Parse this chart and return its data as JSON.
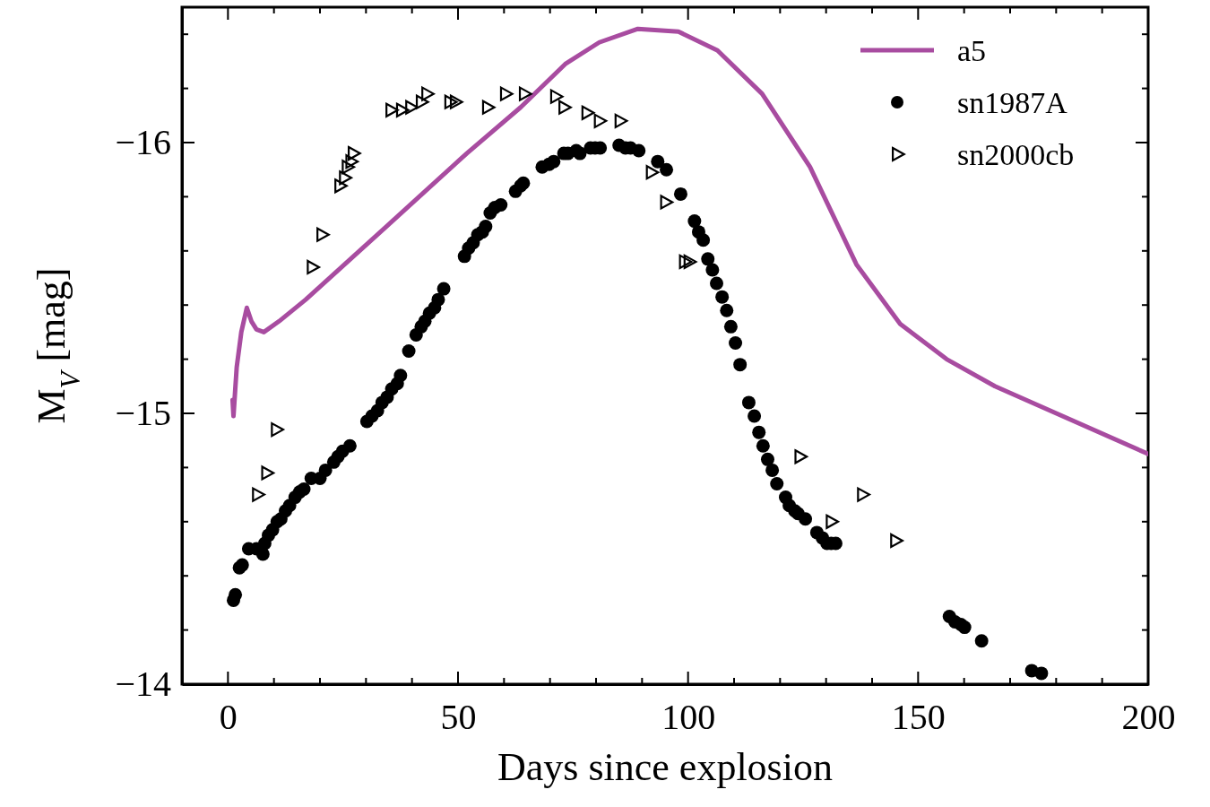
{
  "chart_data": {
    "type": "scatter",
    "xlabel": "Days since explosion",
    "ylabel": "M$_{V}$ [mag]",
    "xlim": [
      -10,
      200
    ],
    "ylim": [
      -14,
      -16.5
    ],
    "xticks": [
      0,
      {
        "value": 10,
        "label": null
      },
      {
        "value": 20,
        "label": null
      },
      {
        "value": 30,
        "label": null
      },
      {
        "value": 40,
        "label": null
      },
      50,
      {
        "value": 60,
        "label": null
      },
      {
        "value": 70,
        "label": null
      },
      {
        "value": 80,
        "label": null
      },
      {
        "value": 90,
        "label": null
      },
      100,
      {
        "value": 110,
        "label": null
      },
      {
        "value": 120,
        "label": null
      },
      {
        "value": 130,
        "label": null
      },
      {
        "value": 140,
        "label": null
      },
      150,
      {
        "value": 160,
        "label": null
      },
      {
        "value": 170,
        "label": null
      },
      {
        "value": 180,
        "label": null
      },
      {
        "value": 190,
        "label": null
      },
      200
    ],
    "yticks": [
      {
        "value": -14,
        "label": "−14"
      },
      {
        "value": -14.2,
        "label": null
      },
      {
        "value": -14.4,
        "label": null
      },
      {
        "value": -14.6,
        "label": null
      },
      {
        "value": -14.8,
        "label": null
      },
      {
        "value": -15,
        "label": "−15"
      },
      {
        "value": -15.2,
        "label": null
      },
      {
        "value": -15.4,
        "label": null
      },
      {
        "value": -15.6,
        "label": null
      },
      {
        "value": -15.8,
        "label": null
      },
      {
        "value": -16,
        "label": "−16"
      },
      {
        "value": -16.2,
        "label": null
      },
      {
        "value": -16.4,
        "label": null
      }
    ],
    "grid": false,
    "legend": "top right",
    "series": [
      {
        "name": "a5",
        "type": "line",
        "color": "#a84ca0",
        "marker": "none",
        "line_style": "solid",
        "x": [
          1.0,
          1.2,
          1.9,
          2.9,
          4.1,
          5.1,
          6.2,
          7.8,
          11.1,
          16.9,
          24.7,
          32.5,
          42.2,
          51.9,
          63.6,
          73.3,
          80.7,
          89.1,
          97.9,
          106.4,
          116.1,
          126.5,
          136.6,
          146.1,
          156.2,
          166.7,
          200
        ],
        "values": [
          -15.05,
          -14.99,
          -15.17,
          -15.3,
          -15.39,
          -15.34,
          -15.31,
          -15.3,
          -15.34,
          -15.42,
          -15.54,
          -15.66,
          -15.81,
          -15.96,
          -16.13,
          -16.29,
          -16.37,
          -16.42,
          -16.41,
          -16.34,
          -16.18,
          -15.91,
          -15.55,
          -15.33,
          -15.2,
          -15.1,
          -14.85
        ]
      },
      {
        "name": "sn1987A",
        "color": "#000000",
        "marker": "circle",
        "x": [
          1.2,
          1.6,
          2.5,
          3.1,
          4.5,
          6.2,
          7.6,
          8.0,
          8.8,
          9.7,
          10.7,
          11.5,
          12.5,
          13.4,
          14.6,
          15.6,
          16.5,
          18.1,
          20.0,
          21.2,
          23.0,
          23.9,
          24.9,
          26.5,
          30.2,
          31.3,
          32.5,
          33.5,
          34.6,
          35.6,
          36.8,
          37.5,
          39.3,
          40.9,
          42.0,
          42.8,
          43.8,
          44.9,
          45.7,
          46.9,
          51.4,
          52.3,
          53.3,
          54.3,
          55.3,
          56.0,
          57.0,
          58.0,
          59.3,
          62.5,
          63.6,
          64.2,
          68.3,
          69.8,
          70.8,
          73.0,
          73.9,
          75.7,
          76.5,
          78.8,
          79.8,
          80.9,
          85.0,
          86.4,
          87.5,
          89.3,
          93.4,
          95.3,
          98.4,
          101.4,
          102.3,
          103.3,
          104.3,
          105.3,
          106.2,
          107.4,
          108.4,
          109.3,
          110.3,
          111.3,
          113.2,
          114.4,
          115.4,
          116.3,
          117.3,
          118.3,
          119.3,
          121.2,
          122.0,
          123.2,
          123.9,
          125.5,
          128.0,
          129.2,
          130.2,
          131.1,
          132.1,
          156.8,
          158.0,
          159.3,
          160.1,
          163.8,
          174.7,
          176.8
        ],
        "values": [
          -14.31,
          -14.33,
          -14.43,
          -14.44,
          -14.5,
          -14.5,
          -14.48,
          -14.52,
          -14.55,
          -14.57,
          -14.6,
          -14.61,
          -14.64,
          -14.66,
          -14.69,
          -14.71,
          -14.72,
          -14.76,
          -14.76,
          -14.79,
          -14.82,
          -14.84,
          -14.86,
          -14.88,
          -14.97,
          -14.99,
          -15.01,
          -15.04,
          -15.06,
          -15.09,
          -15.11,
          -15.14,
          -15.23,
          -15.29,
          -15.32,
          -15.34,
          -15.37,
          -15.39,
          -15.42,
          -15.46,
          -15.58,
          -15.61,
          -15.63,
          -15.66,
          -15.67,
          -15.69,
          -15.74,
          -15.76,
          -15.77,
          -15.82,
          -15.84,
          -15.85,
          -15.91,
          -15.92,
          -15.93,
          -15.96,
          -15.96,
          -15.97,
          -15.96,
          -15.98,
          -15.98,
          -15.98,
          -15.99,
          -15.98,
          -15.98,
          -15.97,
          -15.93,
          -15.9,
          -15.81,
          -15.71,
          -15.67,
          -15.64,
          -15.57,
          -15.53,
          -15.48,
          -15.43,
          -15.38,
          -15.32,
          -15.26,
          -15.18,
          -15.04,
          -14.99,
          -14.93,
          -14.88,
          -14.83,
          -14.79,
          -14.74,
          -14.69,
          -14.66,
          -14.64,
          -14.63,
          -14.61,
          -14.56,
          -14.54,
          -14.52,
          -14.52,
          -14.52,
          -14.25,
          -14.23,
          -14.22,
          -14.21,
          -14.16,
          -14.05,
          -14.04
        ]
      },
      {
        "name": "sn2000cb",
        "color": "#000000",
        "marker": "triangle",
        "x": [
          6.4,
          8.4,
          10.5,
          18.3,
          20.4,
          24.3,
          25.3,
          25.9,
          26.7,
          27.2,
          35.4,
          37.7,
          39.7,
          42.0,
          43.2,
          48.2,
          49.4,
          56.4,
          60.3,
          64.4,
          71.2,
          73.0,
          78.0,
          80.7,
          85.2,
          92.0,
          95.1,
          99.2,
          100.2,
          124.3,
          131.1,
          137.9,
          145.1
        ],
        "values": [
          -14.7,
          -14.78,
          -14.94,
          -15.54,
          -15.66,
          -15.84,
          -15.87,
          -15.91,
          -15.93,
          -15.96,
          -16.12,
          -16.12,
          -16.13,
          -16.15,
          -16.18,
          -16.15,
          -16.15,
          -16.13,
          -16.18,
          -16.18,
          -16.17,
          -16.13,
          -16.11,
          -16.08,
          -16.08,
          -15.89,
          -15.78,
          -15.56,
          -15.56,
          -14.84,
          -14.6,
          -14.7,
          -14.53
        ]
      }
    ]
  }
}
